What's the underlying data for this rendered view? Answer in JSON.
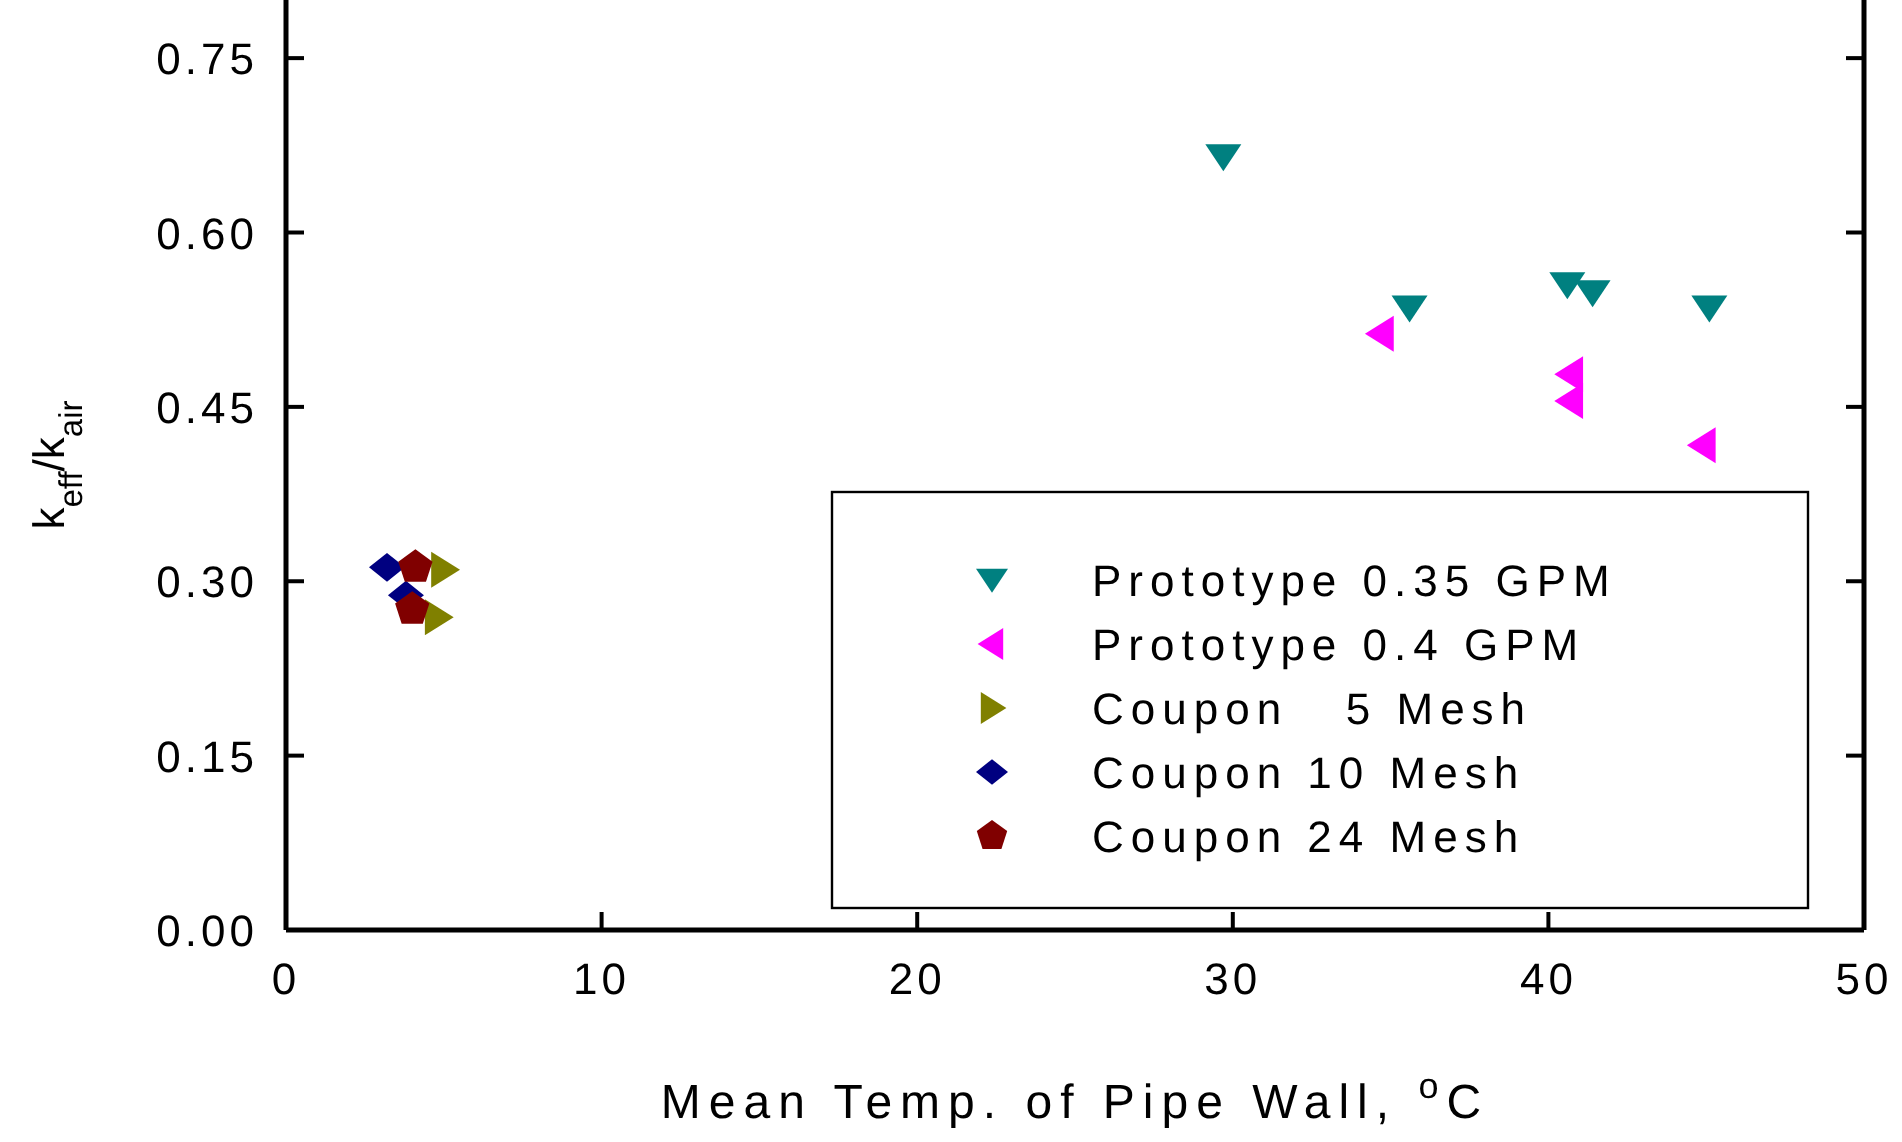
{
  "chart_data": {
    "type": "scatter",
    "xlabel": "Mean Temp. of Pipe Wall, $^{o}$C",
    "ylabel": "k$_{eff}$/k$_{air}$",
    "xlim": [
      0,
      50
    ],
    "xticks": [
      0,
      10,
      20,
      30,
      40,
      50
    ],
    "ylim": [
      0,
      0.8
    ],
    "yticks": [
      {
        "value": 0,
        "label": "0.00"
      },
      {
        "value": 0.15,
        "label": "0.15"
      },
      {
        "value": 0.3,
        "label": "0.30"
      },
      {
        "value": 0.45,
        "label": "0.45"
      },
      {
        "value": 0.6,
        "label": "0.60"
      },
      {
        "value": 0.75,
        "label": "0.75"
      }
    ],
    "grid": false,
    "legend": "bottom right",
    "series": [
      {
        "name": "Prototype 0.35 GPM",
        "color": "#008080",
        "marker": "triangle-down",
        "x": [
          29.7,
          35.6,
          40.6,
          41.4,
          45.1
        ],
        "values": [
          0.665,
          0.535,
          0.555,
          0.548,
          0.535
        ]
      },
      {
        "name": "Prototype 0.4 GPM",
        "color": "#ff00ff",
        "marker": "triangle-left",
        "x": [
          34.7,
          40.7,
          40.7,
          44.9
        ],
        "values": [
          0.513,
          0.478,
          0.455,
          0.417
        ]
      },
      {
        "name": "Coupon   5 Mesh",
        "color": "#808000",
        "marker": "triangle-right",
        "x": [
          5.0,
          4.8
        ],
        "values": [
          0.31,
          0.269
        ]
      },
      {
        "name": "Coupon 10 Mesh",
        "color": "#000080",
        "marker": "diamond",
        "x": [
          3.2,
          3.8
        ],
        "values": [
          0.312,
          0.288
        ]
      },
      {
        "name": "Coupon 24 Mesh",
        "color": "#800000",
        "x": [
          4.1,
          4.0
        ],
        "values": [
          0.312,
          0.276
        ]
      }
    ]
  }
}
